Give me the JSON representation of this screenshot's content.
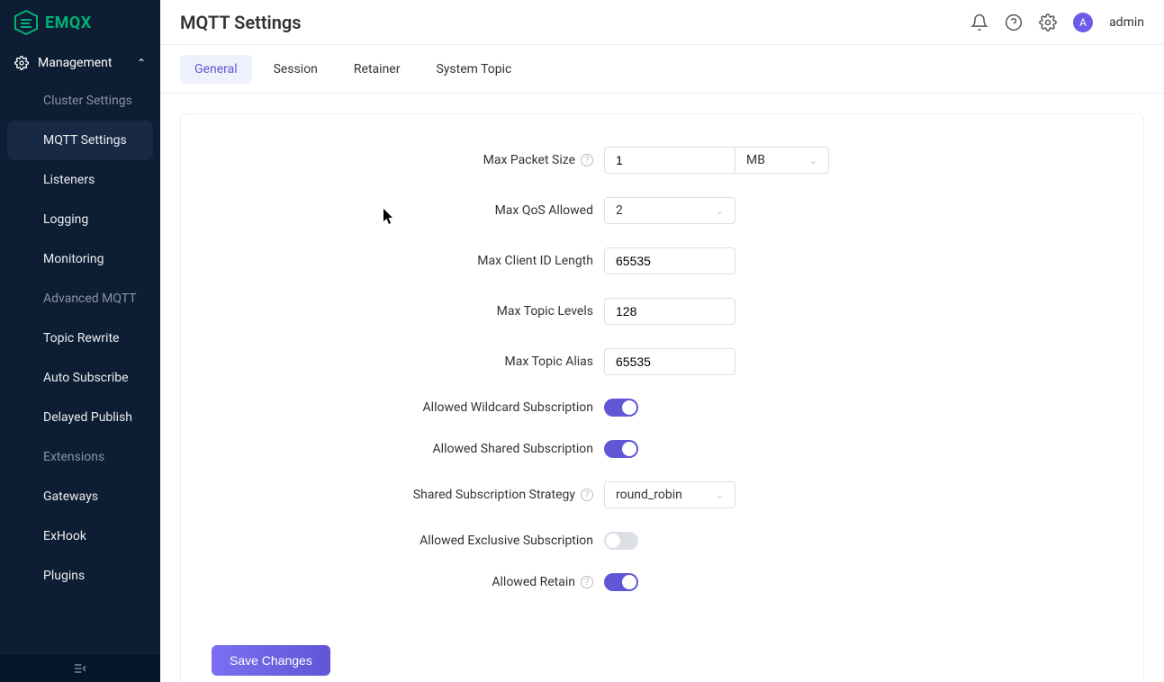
{
  "brand": {
    "name": "EMQX",
    "logo_color": "#00b173"
  },
  "sidebar": {
    "section_label": "Management",
    "items": [
      {
        "label": "Cluster Settings",
        "dim": true
      },
      {
        "label": "MQTT Settings",
        "active": true
      },
      {
        "label": "Listeners"
      },
      {
        "label": "Logging"
      },
      {
        "label": "Monitoring"
      },
      {
        "label": "Advanced MQTT",
        "dim": true
      },
      {
        "label": "Topic Rewrite"
      },
      {
        "label": "Auto Subscribe"
      },
      {
        "label": "Delayed Publish"
      },
      {
        "label": "Extensions",
        "dim": true
      },
      {
        "label": "Gateways"
      },
      {
        "label": "ExHook"
      },
      {
        "label": "Plugins"
      }
    ]
  },
  "header": {
    "title": "MQTT Settings",
    "avatar_initial": "A",
    "username": "admin"
  },
  "tabs": [
    {
      "label": "General",
      "active": true
    },
    {
      "label": "Session"
    },
    {
      "label": "Retainer"
    },
    {
      "label": "System Topic"
    }
  ],
  "form": {
    "max_packet_size": {
      "label": "Max Packet Size",
      "value": "1",
      "unit": "MB",
      "help": true
    },
    "max_qos": {
      "label": "Max QoS Allowed",
      "value": "2"
    },
    "max_client_id": {
      "label": "Max Client ID Length",
      "value": "65535"
    },
    "max_topic_levels": {
      "label": "Max Topic Levels",
      "value": "128"
    },
    "max_topic_alias": {
      "label": "Max Topic Alias",
      "value": "65535"
    },
    "wildcard_sub": {
      "label": "Allowed Wildcard Subscription",
      "on": true
    },
    "shared_sub": {
      "label": "Allowed Shared Subscription",
      "on": true
    },
    "shared_strategy": {
      "label": "Shared Subscription Strategy",
      "value": "round_robin",
      "help": true
    },
    "exclusive_sub": {
      "label": "Allowed Exclusive Subscription",
      "on": false
    },
    "retain": {
      "label": "Allowed Retain",
      "on": true,
      "help": true
    }
  },
  "buttons": {
    "save": "Save Changes"
  },
  "colors": {
    "sidebar_bg": "#0d1d33",
    "sidebar_active_bg": "#1a2b47",
    "accent": "#5f57d6",
    "tab_active_bg": "#eef0fc",
    "border": "#dcdfe6",
    "switch_off": "#dcdfe6"
  }
}
